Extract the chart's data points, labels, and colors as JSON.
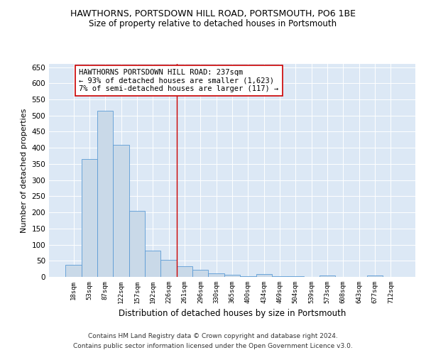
{
  "title": "HAWTHORNS, PORTSDOWN HILL ROAD, PORTSMOUTH, PO6 1BE",
  "subtitle": "Size of property relative to detached houses in Portsmouth",
  "xlabel": "Distribution of detached houses by size in Portsmouth",
  "ylabel": "Number of detached properties",
  "bar_labels": [
    "18sqm",
    "53sqm",
    "87sqm",
    "122sqm",
    "157sqm",
    "192sqm",
    "226sqm",
    "261sqm",
    "296sqm",
    "330sqm",
    "365sqm",
    "400sqm",
    "434sqm",
    "469sqm",
    "504sqm",
    "539sqm",
    "573sqm",
    "608sqm",
    "643sqm",
    "677sqm",
    "712sqm"
  ],
  "bar_values": [
    37,
    365,
    515,
    410,
    204,
    82,
    52,
    34,
    22,
    11,
    7,
    3,
    8,
    3,
    3,
    0,
    5,
    0,
    0,
    5,
    0
  ],
  "bar_color": "#c9d9e8",
  "bar_edge_color": "#5b9bd5",
  "vline_x": 6.5,
  "vline_color": "#cc0000",
  "annotation_text": "HAWTHORNS PORTSDOWN HILL ROAD: 237sqm\n← 93% of detached houses are smaller (1,623)\n7% of semi-detached houses are larger (117) →",
  "annotation_box_color": "#ffffff",
  "annotation_box_edge": "#cc0000",
  "ylim": [
    0,
    660
  ],
  "yticks": [
    0,
    50,
    100,
    150,
    200,
    250,
    300,
    350,
    400,
    450,
    500,
    550,
    600,
    650
  ],
  "footer1": "Contains HM Land Registry data © Crown copyright and database right 2024.",
  "footer2": "Contains public sector information licensed under the Open Government Licence v3.0.",
  "background_color": "#dce8f5",
  "title_fontsize": 9,
  "subtitle_fontsize": 8.5,
  "annotation_fontsize": 7.5,
  "ylabel_fontsize": 8,
  "xlabel_fontsize": 8.5
}
